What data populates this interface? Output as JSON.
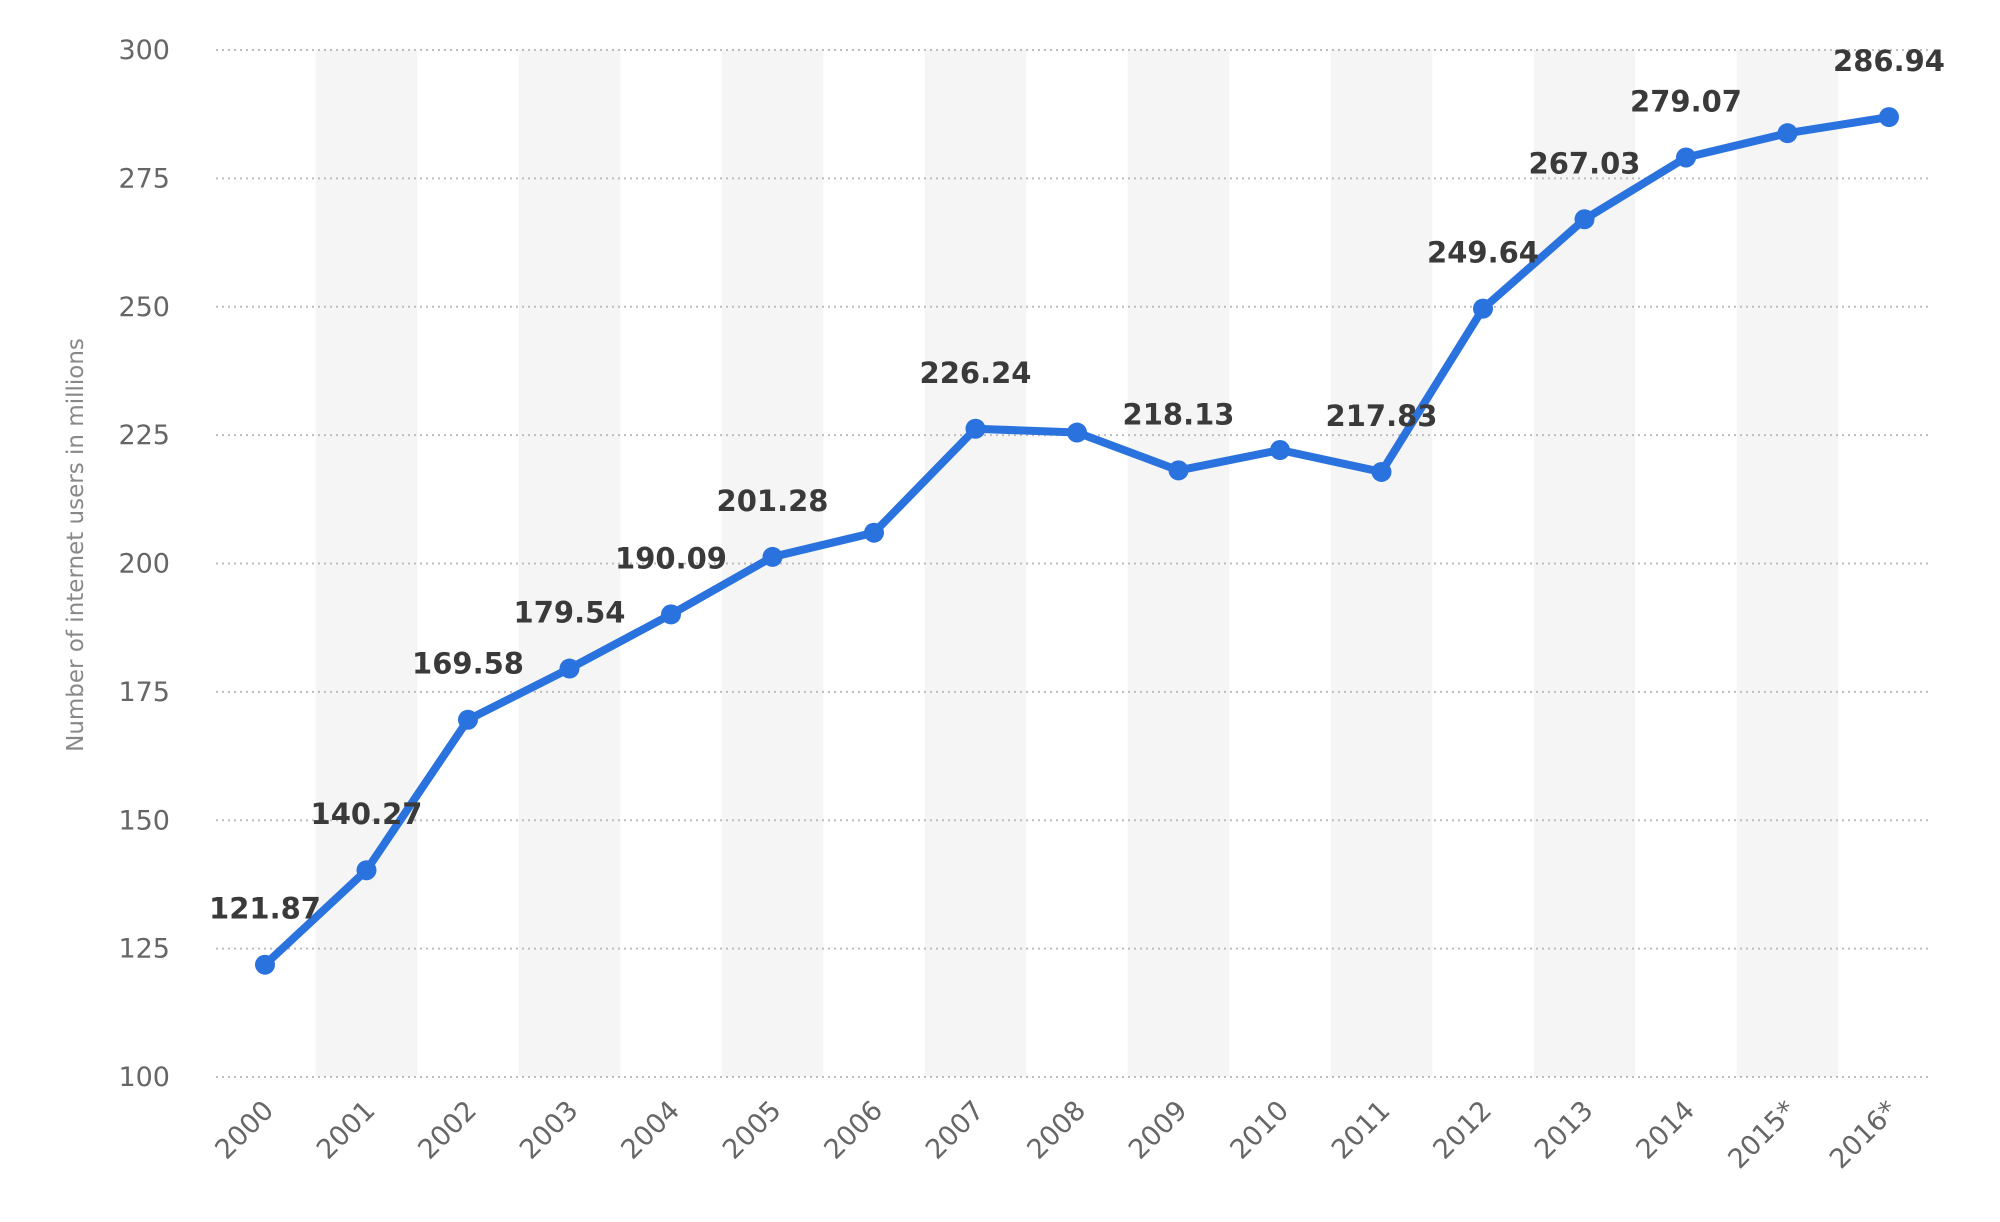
{
  "chart_data": {
    "type": "line",
    "categories": [
      "2000",
      "2001",
      "2002",
      "2003",
      "2004",
      "2005",
      "2006",
      "2007",
      "2008",
      "2009",
      "2010",
      "2011",
      "2012",
      "2013",
      "2014",
      "2015*",
      "2016*"
    ],
    "series": [
      {
        "values": [
          121.87,
          140.27,
          169.58,
          179.54,
          190.09,
          201.28,
          206.0,
          226.24,
          225.5,
          218.13,
          222.1,
          217.83,
          249.64,
          267.03,
          279.07,
          283.8,
          286.94
        ]
      }
    ],
    "data_labels": [
      {
        "index": 0,
        "text": "121.87"
      },
      {
        "index": 1,
        "text": "140.27"
      },
      {
        "index": 2,
        "text": "169.58"
      },
      {
        "index": 3,
        "text": "179.54"
      },
      {
        "index": 4,
        "text": "190.09"
      },
      {
        "index": 5,
        "text": "201.28"
      },
      {
        "index": 7,
        "text": "226.24"
      },
      {
        "index": 9,
        "text": "218.13"
      },
      {
        "index": 11,
        "text": "217.83"
      },
      {
        "index": 12,
        "text": "249.64"
      },
      {
        "index": 13,
        "text": "267.03"
      },
      {
        "index": 14,
        "text": "279.07"
      },
      {
        "index": 16,
        "text": "286.94"
      }
    ],
    "title": "",
    "xlabel": "",
    "ylabel": "Number of internet users in millions",
    "ylim": [
      100,
      300
    ],
    "yticks": [
      100,
      125,
      150,
      175,
      200,
      225,
      250,
      275,
      300
    ],
    "grid": true,
    "alternating_column_bands": true,
    "colors": {
      "line": "#2a72de",
      "band": "#f5f5f5",
      "grid": "#bdbdbd"
    }
  }
}
